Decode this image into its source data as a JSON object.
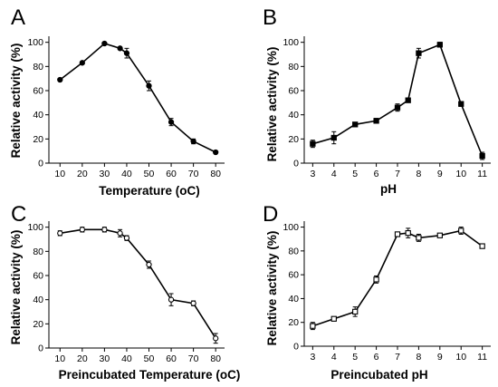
{
  "chart_data": [
    {
      "panel": "A",
      "type": "line",
      "xlabel": "Temperature (oC)",
      "ylabel": "Relative activity (%)",
      "x_ticks": [
        10,
        20,
        30,
        40,
        50,
        60,
        70,
        80
      ],
      "y_ticks": [
        0,
        20,
        40,
        60,
        80,
        100
      ],
      "xlim": [
        5,
        84
      ],
      "ylim": [
        0,
        105
      ],
      "marker": "filled-circle",
      "series": [
        {
          "x": [
            10,
            20,
            30,
            37,
            40,
            50,
            60,
            70,
            80
          ],
          "y": [
            69,
            83,
            99,
            95,
            91,
            64,
            34,
            18,
            9
          ],
          "err": [
            1,
            1,
            1,
            1,
            4,
            4,
            3,
            2,
            1
          ]
        }
      ]
    },
    {
      "panel": "B",
      "type": "line",
      "xlabel": "pH",
      "ylabel": "Relative activity (%)",
      "x_ticks": [
        3,
        4,
        5,
        6,
        7,
        8,
        9,
        10,
        11
      ],
      "y_ticks": [
        0,
        20,
        40,
        60,
        80,
        100
      ],
      "xlim": [
        2.6,
        11.4
      ],
      "ylim": [
        0,
        105
      ],
      "marker": "filled-square",
      "series": [
        {
          "x": [
            3,
            4,
            5,
            6,
            7,
            7.5,
            8,
            9,
            10,
            11
          ],
          "y": [
            16,
            21,
            32,
            35,
            46,
            52,
            91,
            98,
            49,
            6
          ],
          "err": [
            3,
            5,
            1,
            2,
            3,
            1,
            4,
            2,
            2,
            3
          ]
        }
      ]
    },
    {
      "panel": "C",
      "type": "line",
      "xlabel": "Preincubated Temperature (oC)",
      "ylabel": "Relative activity (%)",
      "x_ticks": [
        10,
        20,
        30,
        40,
        50,
        60,
        70,
        80
      ],
      "y_ticks": [
        0,
        20,
        40,
        60,
        80,
        100
      ],
      "xlim": [
        5,
        84
      ],
      "ylim": [
        0,
        105
      ],
      "marker": "open-circle",
      "series": [
        {
          "x": [
            10,
            20,
            30,
            37,
            40,
            50,
            60,
            70,
            80
          ],
          "y": [
            95,
            98,
            98,
            95,
            91,
            69,
            40,
            37,
            8
          ],
          "err": [
            2,
            2,
            2,
            3,
            2,
            3,
            5,
            2,
            4
          ]
        }
      ]
    },
    {
      "panel": "D",
      "type": "line",
      "xlabel": "Preincubated pH",
      "ylabel": "Relative activity (%)",
      "x_ticks": [
        3,
        4,
        5,
        6,
        7,
        8,
        9,
        10,
        11
      ],
      "y_ticks": [
        0,
        20,
        40,
        60,
        80,
        100
      ],
      "xlim": [
        2.6,
        11.4
      ],
      "ylim": [
        0,
        105
      ],
      "marker": "open-square",
      "series": [
        {
          "x": [
            3,
            4,
            5,
            6,
            7,
            7.5,
            8,
            9,
            10,
            11
          ],
          "y": [
            17,
            23,
            29,
            56,
            94,
            95,
            91,
            93,
            97,
            84
          ],
          "err": [
            3,
            1,
            4,
            3,
            1,
            4,
            3,
            1,
            3,
            1
          ]
        }
      ]
    }
  ]
}
